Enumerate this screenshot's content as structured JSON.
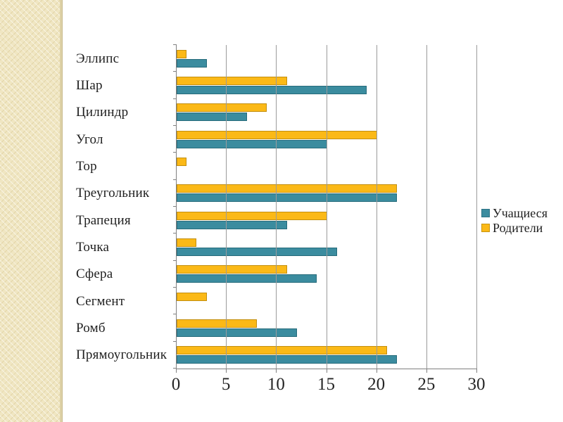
{
  "decoration": {
    "left_strip_color": "#f0e6c2",
    "left_strip_edge_color": "#ddd1a6"
  },
  "chart_data": {
    "type": "bar",
    "orientation": "horizontal",
    "title": "",
    "categories": [
      "Эллипс",
      "Шар",
      "Цилиндр",
      "Угол",
      "Тор",
      "Треугольник",
      "Трапеция",
      "Точка",
      "Сфера",
      "Сегмент",
      "Ромб",
      "Прямоугольник"
    ],
    "series": [
      {
        "name": "Учащиеся",
        "color": "#3b8c9f",
        "values": [
          3,
          19,
          7,
          15,
          0,
          22,
          11,
          16,
          14,
          0,
          12,
          22
        ]
      },
      {
        "name": "Родители",
        "color": "#fbb917",
        "values": [
          1,
          11,
          9,
          20,
          1,
          22,
          15,
          2,
          11,
          3,
          8,
          21
        ]
      }
    ],
    "xlim": [
      0,
      30
    ],
    "x_ticks": [
      0,
      5,
      10,
      15,
      20,
      25,
      30
    ],
    "grid": "vertical-gridlines",
    "legend_position": "right",
    "axis_color": "#808080",
    "gridline_color": "#9b9b9b"
  }
}
